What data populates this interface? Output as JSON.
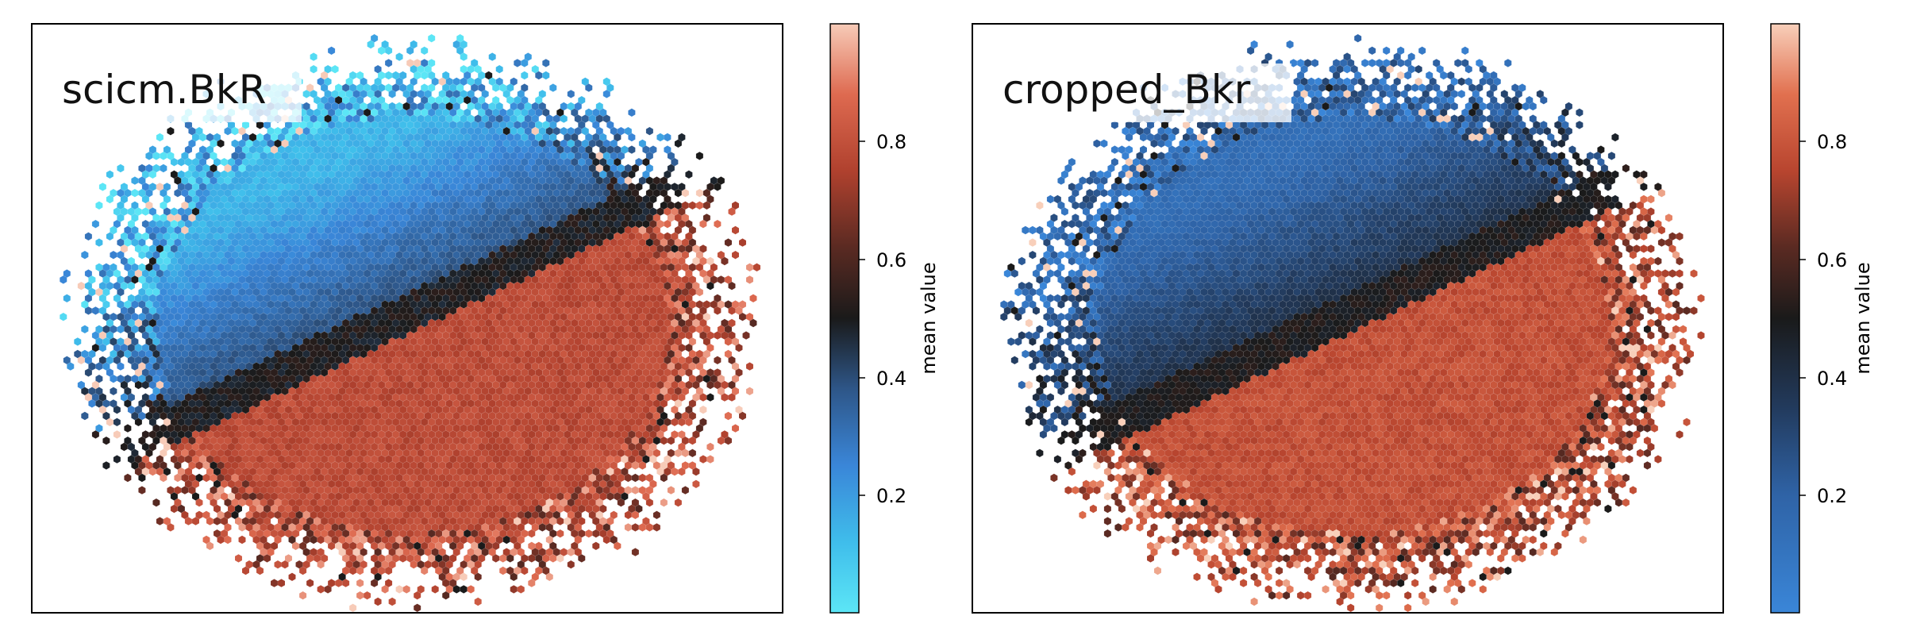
{
  "chart_data": [
    {
      "type": "heatmap",
      "subtype": "hexbin",
      "title": "scicm.BkR",
      "xlabel": "",
      "ylabel": "",
      "axes_ticks_visible": false,
      "colorbar": {
        "label": "mean value",
        "range": [
          0.0,
          1.0
        ],
        "ticks": [
          0.2,
          0.4,
          0.6,
          0.8
        ],
        "tick_labels": [
          "0.2",
          "0.4",
          "0.6",
          "0.8"
        ],
        "colormap_stops": [
          {
            "v": 0.0,
            "color": "#5ce6f6"
          },
          {
            "v": 0.12,
            "color": "#3fbdeb"
          },
          {
            "v": 0.25,
            "color": "#3a86d8"
          },
          {
            "v": 0.38,
            "color": "#2e5688"
          },
          {
            "v": 0.5,
            "color": "#1a1a1a"
          },
          {
            "v": 0.62,
            "color": "#5a2a22"
          },
          {
            "v": 0.75,
            "color": "#b0412e"
          },
          {
            "v": 0.88,
            "color": "#de6a50"
          },
          {
            "v": 1.0,
            "color": "#f7cbb8"
          }
        ]
      },
      "pattern": "upper-left cluster mean ≈ 0.15–0.35 (blue), lower-right cluster mean ≈ 0.75–0.85 (red), sharp diagonal boundary ≈ 0.5 (black)"
    },
    {
      "type": "heatmap",
      "subtype": "hexbin",
      "title": "cropped_Bkr",
      "xlabel": "",
      "ylabel": "",
      "axes_ticks_visible": false,
      "colorbar": {
        "label": "mean value",
        "range": [
          0.0,
          1.0
        ],
        "ticks": [
          0.2,
          0.4,
          0.6,
          0.8
        ],
        "tick_labels": [
          "0.2",
          "0.4",
          "0.6",
          "0.8"
        ],
        "colormap_stops": [
          {
            "v": 0.0,
            "color": "#3a86d8"
          },
          {
            "v": 0.2,
            "color": "#2f63a6"
          },
          {
            "v": 0.35,
            "color": "#223a5c"
          },
          {
            "v": 0.5,
            "color": "#1a1a1a"
          },
          {
            "v": 0.62,
            "color": "#5a2a22"
          },
          {
            "v": 0.75,
            "color": "#b8452f"
          },
          {
            "v": 0.88,
            "color": "#e1704f"
          },
          {
            "v": 1.0,
            "color": "#f8cfba"
          }
        ]
      },
      "pattern": "upper-left cluster mean ≈ 0.2–0.4 (dark blue), lower-right cluster mean ≈ 0.75–0.85 (orange-red), diagonal boundary ≈ 0.5 (black)"
    }
  ]
}
